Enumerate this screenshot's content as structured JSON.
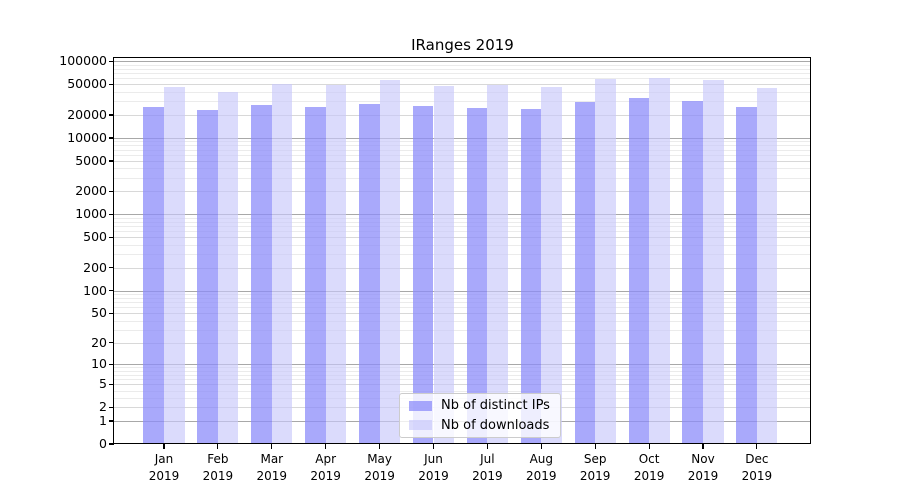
{
  "chart_data": {
    "type": "bar",
    "title": "IRanges 2019",
    "categories": [
      "Jan",
      "Feb",
      "Mar",
      "Apr",
      "May",
      "Jun",
      "Jul",
      "Aug",
      "Sep",
      "Oct",
      "Nov",
      "Dec"
    ],
    "year": "2019",
    "series": [
      {
        "name": "Nb of distinct IPs",
        "color": "#8c8cfa",
        "alpha": 0.75,
        "values": [
          25700,
          23200,
          27000,
          25700,
          27500,
          26500,
          24900,
          23700,
          29900,
          33000,
          30500,
          25700
        ]
      },
      {
        "name": "Nb of downloads",
        "color": "#c8c8fa",
        "alpha": 0.65,
        "values": [
          46000,
          40300,
          50300,
          49300,
          56800,
          47400,
          48900,
          46400,
          58500,
          61400,
          57300,
          45500
        ]
      }
    ],
    "xlabel": "",
    "ylabel": "",
    "yticks": [
      0,
      1,
      2,
      5,
      10,
      20,
      50,
      100,
      200,
      500,
      1000,
      2000,
      5000,
      10000,
      20000,
      50000,
      100000
    ],
    "ylim": [
      0,
      111000
    ],
    "scale": "log1p",
    "grid": "both",
    "grid_colors": {
      "power10": "#a8a8a8",
      "labeled": "#d8d8d8",
      "minor": "#ebebeb"
    },
    "legend_position": "lower center"
  }
}
